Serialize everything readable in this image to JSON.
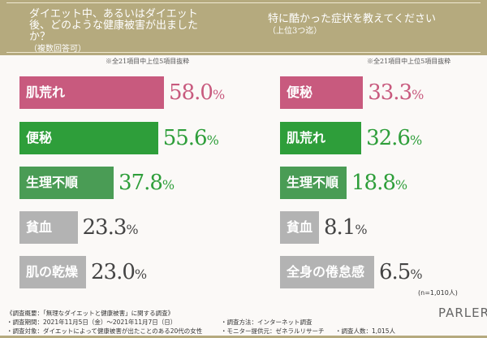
{
  "colors": {
    "pink": "#c85a7e",
    "green": "#2e9e3a",
    "green_light": "#4a9c55",
    "grey": "#b3b3b3",
    "header": "#b5aa7e"
  },
  "chart_data": [
    {
      "type": "bar",
      "title": "ダイエット中、あるいはダイエット後、どのような健康被害が出ましたか？",
      "subtitle": "（複数回答可）",
      "note": "※全21項目中上位5項目抜粋",
      "categories": [
        "肌荒れ",
        "便秘",
        "生理不順",
        "貧血",
        "肌の乾燥"
      ],
      "values": [
        58.0,
        55.6,
        37.8,
        23.3,
        23.0
      ],
      "unit": "%"
    },
    {
      "type": "bar",
      "title": "特に酷かった症状を教えてください",
      "subtitle": "（上位3つ迄）",
      "note": "※全21項目中上位5項目抜粋",
      "categories": [
        "便秘",
        "肌荒れ",
        "生理不順",
        "貧血",
        "全身の倦怠感"
      ],
      "values": [
        33.3,
        32.6,
        18.8,
        8.1,
        6.5
      ],
      "unit": "%",
      "n": "(n=1,010人)"
    }
  ],
  "footer": {
    "title": "《調査概要：「無理なダイエットと健康被害」に関する調査》",
    "period": "・調査期間：2021年11月5日（金）～2021年11月7日（日）",
    "target": "・調査対象：ダイエットによって健康被害が出たことのある20代の女性",
    "method": "・調査方法：インターネット調査",
    "provider": "・モニター提供元：ゼネラルリサーチ",
    "count": "・調査人数：1,015人"
  },
  "logo": {
    "text": "PARLER",
    "sub": "ラ・パルレ",
    "script": "La"
  }
}
